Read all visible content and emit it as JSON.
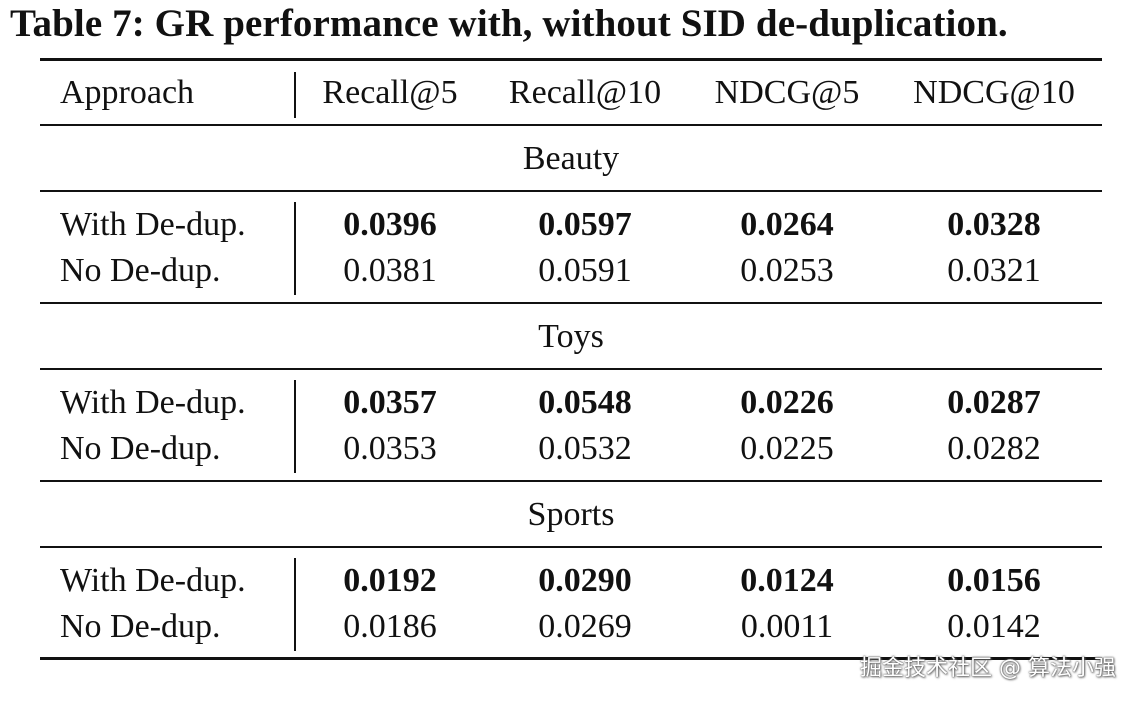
{
  "caption": "Table 7: GR performance with, without SID de-duplication.",
  "header": {
    "approach": "Approach",
    "columns": [
      "Recall@5",
      "Recall@10",
      "NDCG@5",
      "NDCG@10"
    ]
  },
  "sections": [
    {
      "name": "Beauty",
      "rows": [
        {
          "label": "With De-dup.",
          "values": [
            "0.0396",
            "0.0597",
            "0.0264",
            "0.0328"
          ],
          "bold": true
        },
        {
          "label": "No De-dup.",
          "values": [
            "0.0381",
            "0.0591",
            "0.0253",
            "0.0321"
          ],
          "bold": false
        }
      ]
    },
    {
      "name": "Toys",
      "rows": [
        {
          "label": "With De-dup.",
          "values": [
            "0.0357",
            "0.0548",
            "0.0226",
            "0.0287"
          ],
          "bold": true
        },
        {
          "label": "No De-dup.",
          "values": [
            "0.0353",
            "0.0532",
            "0.0225",
            "0.0282"
          ],
          "bold": false
        }
      ]
    },
    {
      "name": "Sports",
      "rows": [
        {
          "label": "With De-dup.",
          "values": [
            "0.0192",
            "0.0290",
            "0.0124",
            "0.0156"
          ],
          "bold": true
        },
        {
          "label": "No De-dup.",
          "values": [
            "0.0186",
            "0.0269",
            "0.0011",
            "0.0142"
          ],
          "bold": false
        }
      ]
    }
  ],
  "watermark": "掘金技术社区 @ 算法小强"
}
